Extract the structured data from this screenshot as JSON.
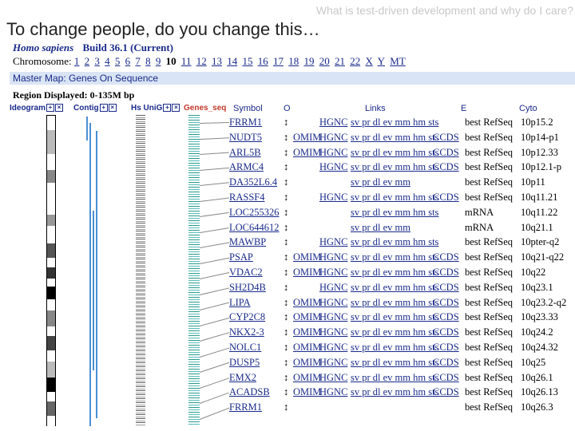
{
  "slide": {
    "header": "What is test-driven development and why do I care?",
    "title": "To change people, do you change this…"
  },
  "map": {
    "organism": "Homo sapiens",
    "build": "Build 36.1 (Current)",
    "chromosome_label": "Chromosome:",
    "chromosomes": [
      "1",
      "2",
      "3",
      "4",
      "5",
      "6",
      "7",
      "8",
      "9",
      "10",
      "11",
      "12",
      "13",
      "14",
      "15",
      "16",
      "17",
      "18",
      "19",
      "20",
      "21",
      "22",
      "X",
      "Y",
      "MT"
    ],
    "current_chromosome": "10",
    "map_title": "Master Map: Genes On Sequence",
    "region": "Region Displayed: 0-135M bp",
    "columns": {
      "ideogram": "Ideogram",
      "contig": "Contig",
      "unigene": "Hs UniG",
      "genes": "Genes_seq",
      "symbol": "Symbol",
      "o": "O",
      "links": "Links",
      "e": "E",
      "cyto": "Cyto"
    },
    "genes": [
      {
        "symbol": "FRRM1",
        "omim": "",
        "hgnc": "HGNC",
        "links": "sv pr dl ev mm hm sts",
        "ccds": "",
        "evidence": "best RefSeq",
        "cyto": "10p15.2"
      },
      {
        "symbol": "NUDT5",
        "omim": "OMIM",
        "hgnc": "HGNC",
        "links": "sv pr dl ev mm hm sts",
        "ccds": "CCDS",
        "evidence": "best RefSeq",
        "cyto": "10p14-p1"
      },
      {
        "symbol": "ARL5B",
        "omim": "OMIM",
        "hgnc": "HGNC",
        "links": "sv pr dl ev mm hm sts",
        "ccds": "CCDS",
        "evidence": "best RefSeq",
        "cyto": "10p12.33"
      },
      {
        "symbol": "ARMC4",
        "omim": "",
        "hgnc": "HGNC",
        "links": "sv pr dl ev mm hm sts",
        "ccds": "CCDS",
        "evidence": "best RefSeq",
        "cyto": "10p12.1-p"
      },
      {
        "symbol": "DA352L6.4",
        "omim": "",
        "hgnc": "",
        "links": "sv pr dl ev mm",
        "ccds": "",
        "evidence": "best RefSeq",
        "cyto": "10p11"
      },
      {
        "symbol": "RASSF4",
        "omim": "",
        "hgnc": "HGNC",
        "links": "sv pr dl ev mm hm sts",
        "ccds": "CCDS",
        "evidence": "best RefSeq",
        "cyto": "10q11.21"
      },
      {
        "symbol": "LOC255326",
        "omim": "",
        "hgnc": "",
        "links": "sv pr dl ev mm hm sts",
        "ccds": "",
        "evidence": "mRNA",
        "cyto": "10q11.22"
      },
      {
        "symbol": "LOC644612",
        "omim": "",
        "hgnc": "",
        "links": "sv pr dl ev mm",
        "ccds": "",
        "evidence": "mRNA",
        "cyto": "10q21.1"
      },
      {
        "symbol": "MAWBP",
        "omim": "",
        "hgnc": "HGNC",
        "links": "sv pr dl ev mm hm sts",
        "ccds": "",
        "evidence": "best RefSeq",
        "cyto": "10pter-q2"
      },
      {
        "symbol": "PSAP",
        "omim": "OMIM",
        "hgnc": "HGNC",
        "links": "sv pr dl ev mm hm sts",
        "ccds": "CCDS",
        "evidence": "best RefSeq",
        "cyto": "10q21-q22"
      },
      {
        "symbol": "VDAC2",
        "omim": "OMIM",
        "hgnc": "HGNC",
        "links": "sv pr dl ev mm hm sts",
        "ccds": "CCDS",
        "evidence": "best RefSeq",
        "cyto": "10q22"
      },
      {
        "symbol": "SH2D4B",
        "omim": "",
        "hgnc": "HGNC",
        "links": "sv pr dl ev mm hm sts",
        "ccds": "CCDS",
        "evidence": "best RefSeq",
        "cyto": "10q23.1"
      },
      {
        "symbol": "LIPA",
        "omim": "OMIM",
        "hgnc": "HGNC",
        "links": "sv pr dl ev mm hm sts",
        "ccds": "CCDS",
        "evidence": "best RefSeq",
        "cyto": "10q23.2-q2"
      },
      {
        "symbol": "CYP2C8",
        "omim": "OMIM",
        "hgnc": "HGNC",
        "links": "sv pr dl ev mm hm sts",
        "ccds": "CCDS",
        "evidence": "best RefSeq",
        "cyto": "10q23.33"
      },
      {
        "symbol": "NKX2-3",
        "omim": "OMIM",
        "hgnc": "HGNC",
        "links": "sv pr dl ev mm hm sts",
        "ccds": "CCDS",
        "evidence": "best RefSeq",
        "cyto": "10q24.2"
      },
      {
        "symbol": "NOLC1",
        "omim": "OMIM",
        "hgnc": "HGNC",
        "links": "sv pr dl ev mm hm sts",
        "ccds": "CCDS",
        "evidence": "best RefSeq",
        "cyto": "10q24.32"
      },
      {
        "symbol": "DUSP5",
        "omim": "OMIM",
        "hgnc": "HGNC",
        "links": "sv pr dl ev mm hm sts",
        "ccds": "CCDS",
        "evidence": "best RefSeq",
        "cyto": "10q25"
      },
      {
        "symbol": "EMX2",
        "omim": "OMIM",
        "hgnc": "HGNC",
        "links": "sv pr dl ev mm hm sts",
        "ccds": "CCDS",
        "evidence": "best RefSeq",
        "cyto": "10q26.1"
      },
      {
        "symbol": "ACADSB",
        "omim": "OMIM",
        "hgnc": "HGNC",
        "links": "sv pr dl ev mm hm sts",
        "ccds": "CCDS",
        "evidence": "best RefSeq",
        "cyto": "10q26.13"
      },
      {
        "symbol": "FRRM1",
        "omim": "",
        "hgnc": "",
        "links": "",
        "ccds": "",
        "evidence": "best RefSeq",
        "cyto": "10q26.3"
      }
    ]
  },
  "colors": {
    "link": "#1a2a8a",
    "map_bar": "#d9e4f5",
    "genes_track": "#2a9a8a",
    "contig_track": "#4a8fd4"
  }
}
